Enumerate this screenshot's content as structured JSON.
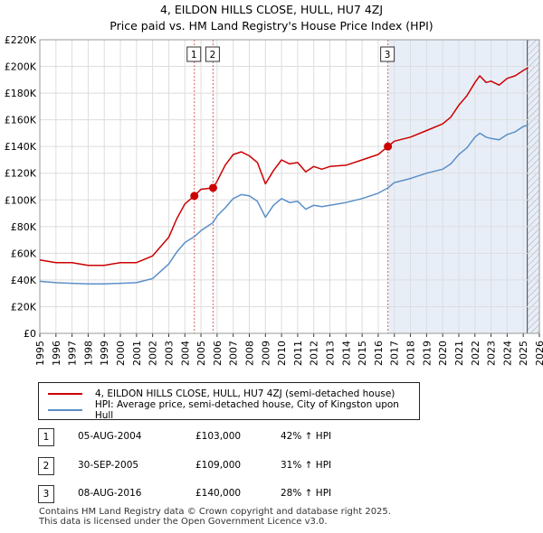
{
  "title_line1": "4, EILDON HILLS CLOSE, HULL, HU7 4ZJ",
  "title_line2": "Price paid vs. HM Land Registry's House Price Index (HPI)",
  "chart_data": {
    "type": "line",
    "title": "Price paid vs. HM Land Registry's House Price Index (HPI)",
    "xlabel": "",
    "ylabel": "",
    "xlim": [
      1995,
      2026
    ],
    "ylim": [
      0,
      220000
    ],
    "y_ticks": [
      0,
      20000,
      40000,
      60000,
      80000,
      100000,
      120000,
      140000,
      160000,
      180000,
      200000,
      220000
    ],
    "y_tick_labels": [
      "£0",
      "£20K",
      "£40K",
      "£60K",
      "£80K",
      "£100K",
      "£120K",
      "£140K",
      "£160K",
      "£180K",
      "£200K",
      "£220K"
    ],
    "x_ticks": [
      1995,
      1996,
      1997,
      1998,
      1999,
      2000,
      2001,
      2002,
      2003,
      2004,
      2005,
      2006,
      2007,
      2008,
      2009,
      2010,
      2011,
      2012,
      2013,
      2014,
      2015,
      2016,
      2017,
      2018,
      2019,
      2020,
      2021,
      2022,
      2023,
      2024,
      2025,
      2026
    ],
    "x_tick_labels": [
      "1995",
      "1996",
      "1997",
      "1998",
      "1999",
      "2000",
      "2001",
      "2002",
      "2003",
      "2004",
      "2005",
      "2006",
      "2007",
      "2008",
      "2009",
      "2010",
      "2011",
      "2012",
      "2013",
      "2014",
      "2015",
      "2016",
      "2017",
      "2018",
      "2019",
      "2020",
      "2021",
      "2022",
      "2023",
      "2024",
      "2025",
      "2026"
    ],
    "grid": true,
    "shaded_region": {
      "x_start": 2016.6,
      "x_end": 2026
    },
    "hatched_region": {
      "x_start": 2025.25,
      "x_end": 2026
    },
    "series": [
      {
        "name": "4, EILDON HILLS CLOSE, HULL, HU7 4ZJ (semi-detached house)",
        "color": "#cc0000",
        "x": [
          1995,
          1996,
          1997,
          1998,
          1999,
          2000,
          2001,
          2002,
          2003,
          2003.5,
          2004,
          2004.59,
          2005,
          2005.75,
          2006,
          2006.5,
          2007,
          2007.5,
          2008,
          2008.5,
          2009,
          2009.5,
          2010,
          2010.5,
          2011,
          2011.5,
          2012,
          2012.5,
          2013,
          2014,
          2015,
          2016,
          2016.6,
          2017,
          2018,
          2019,
          2020,
          2020.5,
          2021,
          2021.5,
          2022,
          2022.3,
          2022.7,
          2023,
          2023.5,
          2024,
          2024.5,
          2025,
          2025.3
        ],
        "values": [
          55000,
          53000,
          53000,
          51000,
          51000,
          53000,
          53000,
          58000,
          72000,
          86000,
          97000,
          103000,
          108000,
          109000,
          114000,
          126000,
          134000,
          136000,
          133000,
          128000,
          112000,
          122000,
          130000,
          127000,
          128000,
          121000,
          125000,
          123000,
          125000,
          126000,
          130000,
          134000,
          140000,
          144000,
          147000,
          152000,
          157000,
          162000,
          171000,
          178000,
          188000,
          193000,
          188000,
          189000,
          186000,
          191000,
          193000,
          197000,
          199000
        ]
      },
      {
        "name": "HPI: Average price, semi-detached house, City of Kingston upon Hull",
        "color": "#5b8fc7",
        "x": [
          1995,
          1996,
          1997,
          1998,
          1999,
          2000,
          2001,
          2002,
          2003,
          2003.5,
          2004,
          2004.59,
          2005,
          2005.75,
          2006,
          2006.5,
          2007,
          2007.5,
          2008,
          2008.5,
          2009,
          2009.5,
          2010,
          2010.5,
          2011,
          2011.5,
          2012,
          2012.5,
          2013,
          2014,
          2015,
          2016,
          2016.6,
          2017,
          2018,
          2019,
          2020,
          2020.5,
          2021,
          2021.5,
          2022,
          2022.3,
          2022.7,
          2023,
          2023.5,
          2024,
          2024.5,
          2025,
          2025.3
        ],
        "values": [
          39000,
          38000,
          37500,
          37000,
          37000,
          37500,
          38000,
          41000,
          52000,
          61000,
          68000,
          72500,
          77000,
          83000,
          88000,
          94000,
          101000,
          104000,
          103000,
          99000,
          87000,
          96000,
          101000,
          98000,
          99000,
          93000,
          96000,
          95000,
          96000,
          98000,
          101000,
          105000,
          109000,
          113000,
          116000,
          120000,
          123000,
          127000,
          134000,
          139000,
          147000,
          150000,
          147000,
          146000,
          145000,
          149000,
          151000,
          155000,
          156000
        ]
      }
    ],
    "sales": [
      {
        "num": "1",
        "x": 2004.59,
        "value": 103000,
        "date": "05-AUG-2004",
        "price": "£103,000",
        "hpi": "42% ↑ HPI"
      },
      {
        "num": "2",
        "x": 2005.75,
        "value": 109000,
        "date": "30-SEP-2005",
        "price": "£109,000",
        "hpi": "31% ↑ HPI"
      },
      {
        "num": "3",
        "x": 2016.6,
        "value": 140000,
        "date": "08-AUG-2016",
        "price": "£140,000",
        "hpi": "28% ↑ HPI"
      }
    ]
  },
  "legend": {
    "item1": "4, EILDON HILLS CLOSE, HULL, HU7 4ZJ (semi-detached house)",
    "item2": "HPI: Average price, semi-detached house, City of Kingston upon Hull",
    "color1": "#cc0000",
    "color2": "#5b8fc7"
  },
  "footer_line1": "Contains HM Land Registry data © Crown copyright and database right 2025.",
  "footer_line2": "This data is licensed under the Open Government Licence v3.0."
}
